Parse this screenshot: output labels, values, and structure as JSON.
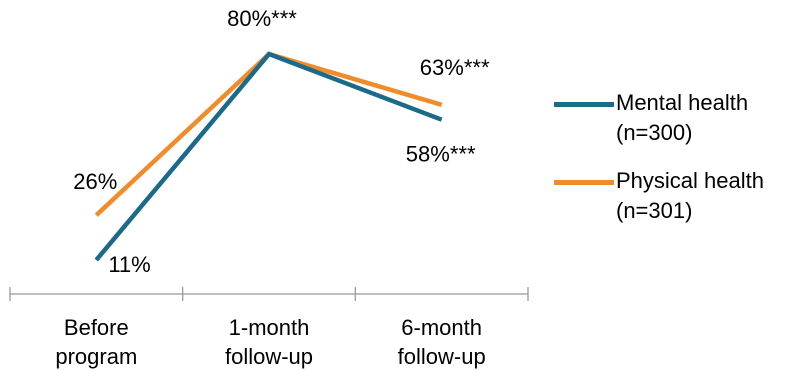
{
  "chart_data": {
    "type": "line",
    "categories": [
      "Before program",
      "1-month follow-up",
      "6-month follow-up"
    ],
    "category_lines": [
      [
        "Before",
        "program"
      ],
      [
        "1-month",
        "follow-up"
      ],
      [
        "6-month",
        "follow-up"
      ]
    ],
    "series": [
      {
        "name_lines": [
          "Mental health",
          "(n=300)"
        ],
        "values": [
          11,
          80,
          58
        ],
        "labels": [
          "11%",
          "80%***",
          "58%***"
        ],
        "color": "#1b6a8a"
      },
      {
        "name_lines": [
          "Physical health",
          "(n=301)"
        ],
        "values": [
          26,
          80,
          63
        ],
        "labels": [
          "26%",
          "80%***",
          "63%***"
        ],
        "color": "#f08c2a"
      }
    ],
    "title": "",
    "xlabel": "",
    "ylabel": "",
    "grid": false,
    "legend_position": "right"
  }
}
